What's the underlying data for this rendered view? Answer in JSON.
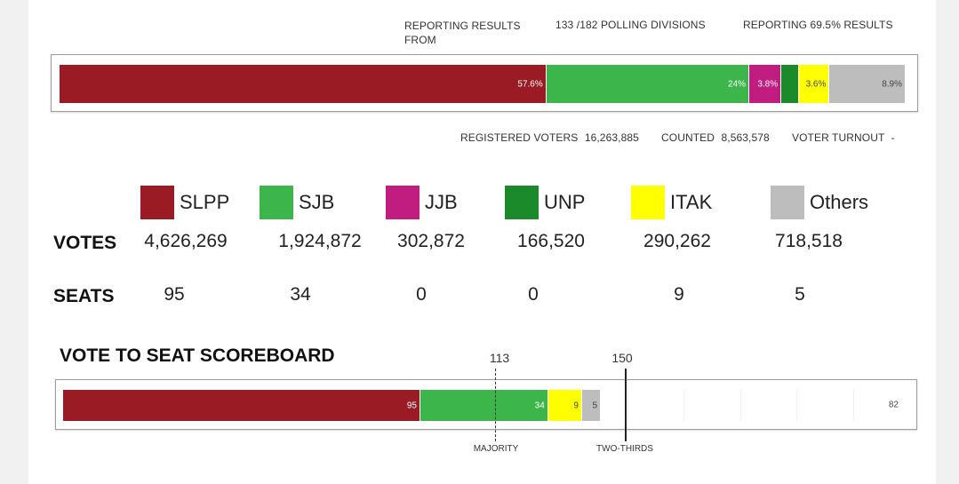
{
  "reporting": {
    "results_label_line1": "REPORTING RESULTS",
    "results_label_line2": "FROM",
    "polling_divisions": "133 /182 POLLING DIVISIONS",
    "reporting_pct": "REPORTING 69.5% RESULTS"
  },
  "vote_share_bar": [
    {
      "party": "SLPP",
      "pct": 57.6,
      "label": "57.6%",
      "color": "#9b1b24",
      "light": false
    },
    {
      "party": "SJB",
      "pct": 24,
      "label": "24%",
      "color": "#3cb54a",
      "light": false
    },
    {
      "party": "JJB",
      "pct": 3.8,
      "label": "3.8%",
      "color": "#c11c80",
      "light": false
    },
    {
      "party": "UNP",
      "pct": 2.1,
      "label": "",
      "color": "#1b8a2a",
      "light": false
    },
    {
      "party": "ITAK",
      "pct": 3.6,
      "label": "3.6%",
      "color": "#ffff00",
      "light": true
    },
    {
      "party": "Others",
      "pct": 8.9,
      "label": "8.9%",
      "color": "#bdbdbd",
      "light": true
    }
  ],
  "stats": {
    "registered_label": "REGISTERED VOTERS",
    "registered_value": "16,263,885",
    "counted_label": "COUNTED",
    "counted_value": "8,563,578",
    "turnout_label": "VOTER TURNOUT",
    "turnout_value": "-"
  },
  "row_labels": {
    "votes": "VOTES",
    "seats": "SEATS"
  },
  "parties": [
    {
      "name": "SLPP",
      "color": "#9b1b24",
      "votes": "4,626,269",
      "seats": "95"
    },
    {
      "name": "SJB",
      "color": "#3cb54a",
      "votes": "1,924,872",
      "seats": "34"
    },
    {
      "name": "JJB",
      "color": "#c11c80",
      "votes": "302,872",
      "seats": "0"
    },
    {
      "name": "UNP",
      "color": "#1b8a2a",
      "votes": "166,520",
      "seats": "0"
    },
    {
      "name": "ITAK",
      "color": "#ffff00",
      "votes": "290,262",
      "seats": "9"
    },
    {
      "name": "Others",
      "color": "#bdbdbd",
      "votes": "718,518",
      "seats": "5"
    }
  ],
  "scoreboard": {
    "title": "VOTE TO SEAT SCOREBOARD",
    "total_seats": 225,
    "segments": [
      {
        "party": "SLPP",
        "seats": 95,
        "label": "95",
        "color": "#9b1b24",
        "light": false
      },
      {
        "party": "SJB",
        "seats": 34,
        "label": "34",
        "color": "#3cb54a",
        "light": false
      },
      {
        "party": "ITAK",
        "seats": 9,
        "label": "9",
        "color": "#ffff00",
        "light": true
      },
      {
        "party": "Others",
        "seats": 5,
        "label": "5",
        "color": "#bdbdbd",
        "light": true
      }
    ],
    "remaining_label": "82",
    "majority_value": "113",
    "majority_label": "MAJORITY",
    "two_thirds_value": "150",
    "two_thirds_label": "TWO-THIRDS"
  }
}
